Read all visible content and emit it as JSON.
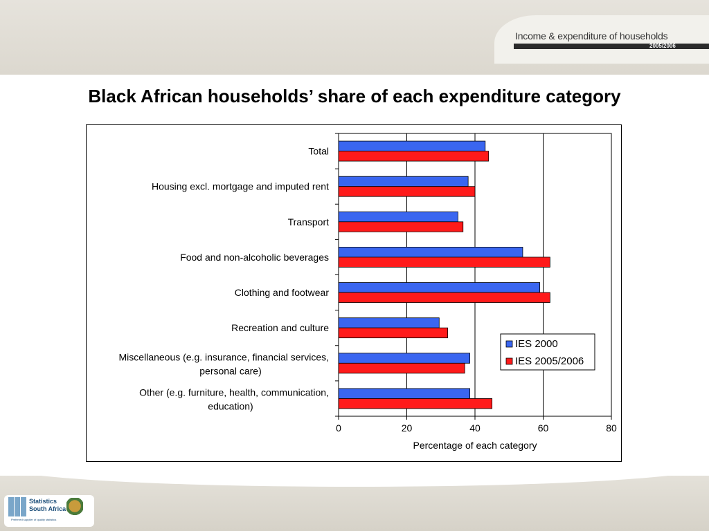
{
  "header": {
    "publication_title": "Income & expenditure of households",
    "publication_year": "2005/2006"
  },
  "slide": {
    "title": "Black African households’ share of each expenditure category"
  },
  "footer": {
    "logo_line1": "Statistics",
    "logo_line2": "South Africa",
    "logo_tagline": "Preferred supplier of quality statistics"
  },
  "chart_data": {
    "type": "bar",
    "orientation": "horizontal",
    "title": "",
    "xlabel": "Percentage of each category",
    "ylabel": "",
    "xlim": [
      0,
      80
    ],
    "xticks": [
      0,
      20,
      40,
      60,
      80
    ],
    "grid": "vertical major gridlines",
    "legend_position": "right",
    "categories": [
      [
        "Total"
      ],
      [
        "Housing excl. mortgage and imputed rent"
      ],
      [
        "Transport"
      ],
      [
        "Food and non-alcoholic beverages"
      ],
      [
        "Clothing and footwear"
      ],
      [
        "Recreation and culture"
      ],
      [
        "Miscellaneous (e.g. insurance, financial services,",
        "personal care)"
      ],
      [
        "Other (e.g. furniture, health, communication,",
        "education)"
      ]
    ],
    "series": [
      {
        "name": "IES 2000",
        "color": "#3a66f0",
        "values": [
          43,
          38,
          35,
          54,
          59,
          29.5,
          38.5,
          38.5
        ]
      },
      {
        "name": "IES 2005/2006",
        "color": "#ff1a1a",
        "values": [
          44,
          40,
          36.5,
          62,
          62,
          32,
          37,
          45
        ]
      }
    ]
  }
}
